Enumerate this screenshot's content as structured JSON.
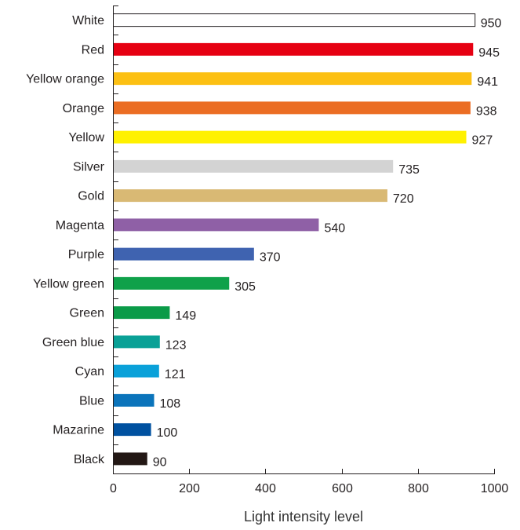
{
  "chart_data": {
    "type": "bar",
    "orientation": "horizontal",
    "categories": [
      "White",
      "Red",
      "Yellow orange",
      "Orange",
      "Yellow",
      "Silver",
      "Gold",
      "Magenta",
      "Purple",
      "Yellow green",
      "Green",
      "Green blue",
      "Cyan",
      "Blue",
      "Mazarine",
      "Black"
    ],
    "values": [
      950,
      945,
      941,
      938,
      927,
      735,
      720,
      540,
      370,
      305,
      149,
      123,
      121,
      108,
      100,
      90
    ],
    "colors": [
      "#ffffff",
      "#e60012",
      "#fcc013",
      "#eb6d23",
      "#fff100",
      "#d3d3d3",
      "#d9b974",
      "#8f60a6",
      "#3f63b0",
      "#0fa14a",
      "#0b9b48",
      "#0aa196",
      "#0aa1d9",
      "#0b74bb",
      "#0051a0",
      "#231815"
    ],
    "outlined": [
      true,
      false,
      false,
      false,
      false,
      false,
      false,
      false,
      false,
      false,
      false,
      false,
      false,
      false,
      false,
      false
    ],
    "xlabel": "Light intensity level",
    "ylabel": "",
    "title": "",
    "xlim": [
      0,
      1000
    ],
    "xticks": [
      0,
      200,
      400,
      600,
      800,
      1000
    ],
    "grid": false
  }
}
